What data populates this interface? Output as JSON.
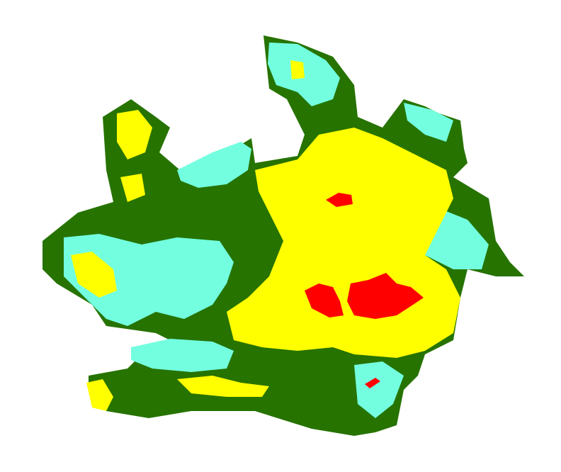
{
  "map": {
    "type": "classified raster map",
    "classes": [
      {
        "id": "class-1",
        "color": "#267300"
      },
      {
        "id": "class-2",
        "color": "#73ffdf"
      },
      {
        "id": "class-3",
        "color": "#ffff00"
      },
      {
        "id": "class-4",
        "color": "#ff0000"
      }
    ],
    "background": "#ffffff"
  }
}
